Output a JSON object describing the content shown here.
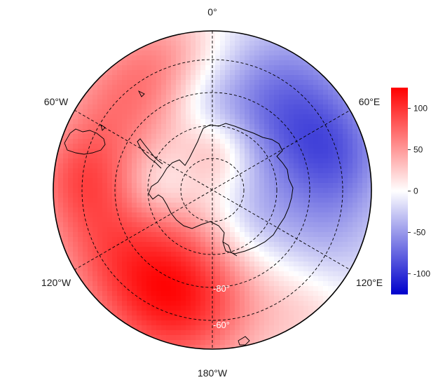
{
  "longitude_labels": {
    "top": "0°",
    "upper_left": "60°W",
    "upper_right": "60°E",
    "lower_left": "120°W",
    "lower_right": "120°E",
    "bottom": "180°W"
  },
  "latitude_labels": [
    "-80°",
    "-60°"
  ],
  "colorbar": {
    "ticks": [
      "100",
      "50",
      "0",
      "-50",
      "-100"
    ],
    "tick_values": [
      100,
      50,
      0,
      -50,
      -100
    ],
    "range": [
      -125,
      125
    ],
    "colors": {
      "high": "#ff0000",
      "mid": "#ffffff",
      "low": "#0000cc"
    }
  },
  "map": {
    "projection": "south-polar-stereographic",
    "graticule": "dashed",
    "coastline_color": "#000000",
    "frame_color": "#000000"
  }
}
